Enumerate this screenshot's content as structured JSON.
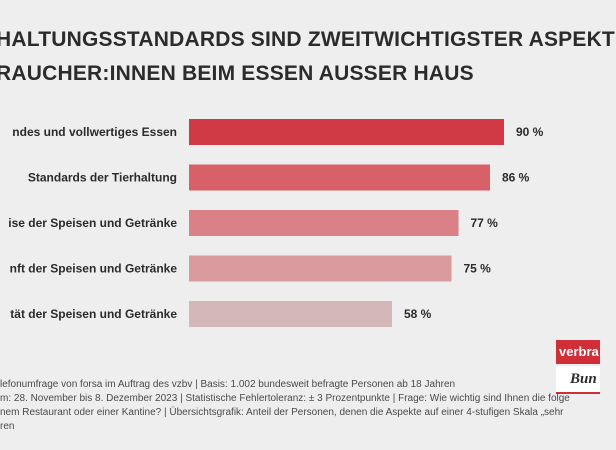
{
  "title": {
    "line1": "HALTUNGSSTANDARDS SIND ZWEITWICHTIGSTER ASPEKT",
    "line2": "RAUCHER:INNEN BEIM ESSEN AUSSER HAUS"
  },
  "chart_data": {
    "type": "bar",
    "orientation": "horizontal",
    "categories": [
      "ndes und vollwertiges Essen",
      "Standards der Tierhaltung",
      "ise der Speisen und Getränke",
      "nft der Speisen und Getränke",
      "tät der Speisen und Getränke"
    ],
    "values": [
      90,
      86,
      77,
      75,
      58
    ],
    "value_labels": [
      "90 %",
      "86 %",
      "77 %",
      "75 %",
      "58 %"
    ],
    "colors": [
      "#cf3a44",
      "#d86068",
      "#d98186",
      "#d99b9e",
      "#d4b8b9"
    ],
    "xlim": [
      0,
      100
    ],
    "grid": false,
    "unit": "%"
  },
  "footer": {
    "line1": "lefonumfrage von forsa im Auftrag des vzbv | Basis: 1.002 bundesweit befragte Personen ab 18 Jahren",
    "line2": "m: 28. November bis 8. Dezember 2023 | Statistische Fehlertoleranz: ± 3 Prozentpunkte | Frage: Wie wichtig sind Ihnen die folge",
    "line3": "nem Restaurant oder einer Kantine? | Übersichtsgrafik: Anteil der Personen, denen die Aspekte auf einer 4-stufigen Skala „sehr",
    "line4": "ren"
  },
  "logo": {
    "top": "verbra",
    "bottom": "Bun"
  }
}
